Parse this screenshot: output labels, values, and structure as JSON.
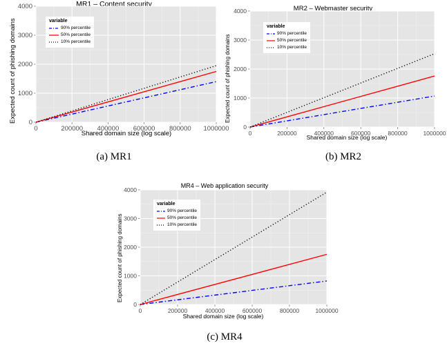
{
  "chart_data": [
    {
      "type": "line",
      "id": "mr1",
      "title": "MR1 – Content security",
      "xlabel": "Shared domain size (log scale)",
      "ylabel": "Expected count of phishing domains",
      "x_ticks": [
        "0",
        "200000",
        "400000",
        "600000",
        "800000",
        "1000000"
      ],
      "y_ticks": [
        "0",
        "1000",
        "2000",
        "3000",
        "4000"
      ],
      "xlim": [
        0,
        1000000
      ],
      "ylim": [
        0,
        4000
      ],
      "legend_title": "variable",
      "legend_position": "top-left",
      "grid": true,
      "x": [
        0,
        1000000
      ],
      "series": [
        {
          "name": "90% percentile",
          "values": [
            0,
            1400
          ],
          "color": "#0000ff",
          "dash": "dashdot"
        },
        {
          "name": "50% percentile",
          "values": [
            0,
            1750
          ],
          "color": "#ff0000",
          "dash": "solid"
        },
        {
          "name": "10% percentile",
          "values": [
            0,
            1950
          ],
          "color": "#000000",
          "dash": "dotted"
        }
      ],
      "caption": "(a)  MR1"
    },
    {
      "type": "line",
      "id": "mr2",
      "title": "MR2 – Webmaster security",
      "xlabel": "Shared domain size (log scale)",
      "ylabel": "Expected count of phishing domains",
      "x_ticks": [
        "0",
        "200000",
        "400000",
        "600000",
        "800000",
        "1000000"
      ],
      "y_ticks": [
        "0",
        "1000",
        "2000",
        "3000",
        "4000"
      ],
      "xlim": [
        0,
        1000000
      ],
      "ylim": [
        0,
        4000
      ],
      "legend_title": "variable",
      "legend_position": "top-left",
      "grid": true,
      "x": [
        0,
        1000000
      ],
      "series": [
        {
          "name": "90% percentile",
          "values": [
            0,
            1070
          ],
          "color": "#0000ff",
          "dash": "dashdot"
        },
        {
          "name": "50% percentile",
          "values": [
            0,
            1760
          ],
          "color": "#ff0000",
          "dash": "solid"
        },
        {
          "name": "10% percentile",
          "values": [
            0,
            2530
          ],
          "color": "#000000",
          "dash": "dotted"
        }
      ],
      "caption": "(b)  MR2"
    },
    {
      "type": "line",
      "id": "mr4",
      "title": "MR4 – Web application security",
      "xlabel": "Shared domain size (log scale)",
      "ylabel": "Expected count of phishing domains",
      "x_ticks": [
        "0",
        "200000",
        "400000",
        "600000",
        "800000",
        "1000000"
      ],
      "y_ticks": [
        "0",
        "1000",
        "2000",
        "3000",
        "4000"
      ],
      "xlim": [
        0,
        1000000
      ],
      "ylim": [
        0,
        4000
      ],
      "legend_title": "variable",
      "legend_position": "top-left",
      "grid": true,
      "x": [
        0,
        1000000
      ],
      "series": [
        {
          "name": "90% percentile",
          "values": [
            0,
            820
          ],
          "color": "#0000ff",
          "dash": "dashdot"
        },
        {
          "name": "50% percentile",
          "values": [
            0,
            1750
          ],
          "color": "#ff0000",
          "dash": "solid"
        },
        {
          "name": "10% percentile",
          "values": [
            0,
            3920
          ],
          "color": "#000000",
          "dash": "dotted"
        }
      ],
      "caption": "(c)  MR4"
    }
  ]
}
